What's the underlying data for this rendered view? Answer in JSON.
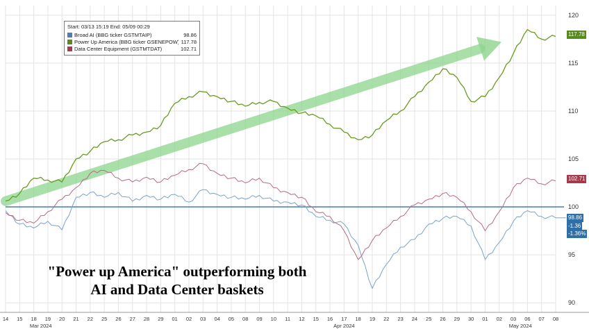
{
  "legend": {
    "header": "Start: 03/13 15:19 End: 05/09 00:29",
    "items": [
      {
        "name": "Broad AI (BBG ticker GSTMTAIP)",
        "value": "98.86",
        "color": "#4a7fb5"
      },
      {
        "name": "Power Up America (BBG ticker GSENEPOW)",
        "value": "117.78",
        "color": "#5a8a1a"
      },
      {
        "name": "Data Center Equipment (GSTMTDAT)",
        "value": "102.71",
        "color": "#a63a4a"
      }
    ]
  },
  "callout": {
    "line1": "\"Power up America\" outperforming both",
    "line2": "AI and Data Center baskets"
  },
  "tags": {
    "power": "117.78",
    "dc": "102.71",
    "ai": "98.86",
    "ai_chg1": "-1.36",
    "ai_chg2": "-1.36%"
  },
  "chart_data": {
    "type": "line",
    "x": [
      "14",
      "15",
      "18",
      "19",
      "20",
      "21",
      "22",
      "25",
      "26",
      "27",
      "28",
      "29",
      "01",
      "02",
      "03",
      "04",
      "05",
      "08",
      "09",
      "10",
      "11",
      "12",
      "15",
      "16",
      "17",
      "18",
      "19",
      "22",
      "23",
      "24",
      "25",
      "26",
      "29",
      "30",
      "01",
      "02",
      "03",
      "06",
      "07",
      "08"
    ],
    "month_labels": [
      "Mar 2024",
      "Apr 2024",
      "May 2024"
    ],
    "ylim": [
      89,
      121
    ],
    "yticks": [
      90,
      95,
      100,
      105,
      110,
      115,
      120
    ],
    "reference_line": 100,
    "series": [
      {
        "name": "Broad AI (BBG ticker GSTMTAIP)",
        "color": "#7aa3c9",
        "values": [
          99.6,
          98.2,
          97.8,
          98.5,
          97.6,
          101.0,
          101.5,
          101.0,
          101.5,
          100.6,
          101.2,
          100.8,
          101.3,
          100.5,
          101.8,
          101.3,
          101.0,
          100.8,
          101.2,
          100.6,
          100.5,
          100.2,
          99.0,
          98.6,
          98.2,
          96.0,
          91.5,
          94.0,
          95.8,
          96.6,
          98.2,
          98.8,
          99.0,
          98.0,
          94.5,
          96.3,
          98.5,
          99.6,
          99.0,
          98.86
        ]
      },
      {
        "name": "Power Up America (BBG ticker GSENEPOW)",
        "color": "#6a9a1e",
        "values": [
          100.6,
          101.4,
          103.0,
          102.8,
          102.6,
          105.0,
          105.8,
          106.8,
          107.0,
          107.5,
          107.8,
          108.5,
          110.8,
          111.5,
          112.0,
          111.5,
          111.0,
          110.5,
          110.9,
          111.0,
          110.3,
          109.8,
          109.5,
          108.6,
          107.8,
          107.0,
          107.5,
          109.0,
          110.0,
          111.5,
          113.0,
          114.4,
          113.5,
          111.0,
          111.5,
          113.5,
          116.0,
          118.5,
          117.5,
          117.78
        ]
      },
      {
        "name": "Data Center Equipment (GSTMTDAT)",
        "color": "#b86a82",
        "values": [
          99.4,
          98.6,
          98.3,
          99.5,
          100.8,
          102.0,
          103.5,
          103.8,
          103.0,
          102.6,
          103.1,
          102.6,
          103.3,
          103.9,
          104.5,
          103.5,
          103.0,
          102.5,
          103.0,
          102.0,
          101.5,
          101.0,
          99.5,
          99.0,
          97.5,
          94.5,
          96.5,
          97.8,
          99.0,
          100.2,
          100.8,
          101.4,
          101.0,
          99.5,
          97.5,
          99.5,
          102.0,
          103.0,
          102.4,
          102.71
        ]
      }
    ]
  }
}
